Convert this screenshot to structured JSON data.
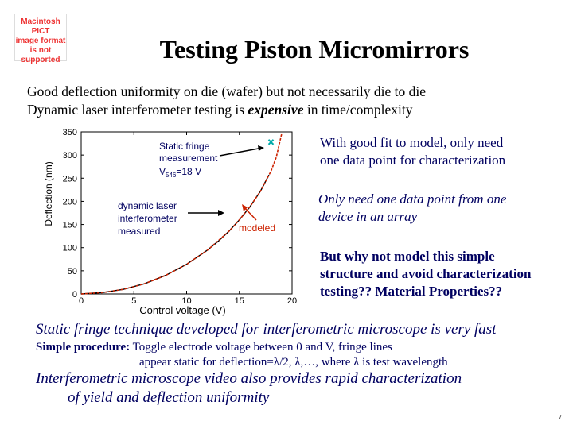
{
  "placeholder": {
    "line1": "Macintosh PICT",
    "line2": "image format",
    "line3": "is not supported"
  },
  "title": "Testing Piston Micromirrors",
  "bullets": [
    "Good deflection uniformity on die (wafer) but not necessarily die to die",
    "Dynamic laser interferometer testing is ",
    "expensive",
    " in time/complexity"
  ],
  "notes": {
    "note1_line1": "With good fit to model, only need",
    "note1_line2": "one data point for characterization",
    "note2_line1": "Only need one data point from one",
    "note2_line2": "device in an array",
    "note3_line1": "But why not model this simple",
    "note3_line2": "structure and avoid characterization",
    "note3_line3": "testing?? Material Properties??"
  },
  "lower": {
    "line1": "Static fringe technique developed for interferometric microscope is very fast",
    "line2_bold": "Simple procedure:",
    "line2_rest": " Toggle electrode voltage between 0 and V, fringe lines",
    "line3": "appear static for deflection=λ/2, λ,…, where λ is test wavelength",
    "line4": "Interferometric microscope video also provides rapid characterization",
    "line5": "of yield and deflection uniformity"
  },
  "page_number": "7",
  "colors": {
    "text_blue": "#000060",
    "model_red": "#cc2200",
    "marker_cyan": "#00aaaa",
    "arrow": "#000000"
  },
  "chart_data": {
    "type": "line",
    "xlabel": "Control voltage (V)",
    "ylabel": "Deflection (nm)",
    "xlim": [
      0,
      20
    ],
    "ylim": [
      0,
      350
    ],
    "xticks": [
      0,
      5,
      10,
      15,
      20
    ],
    "yticks": [
      0,
      50,
      100,
      150,
      200,
      250,
      300,
      350
    ],
    "grid": false,
    "series": [
      {
        "name": "measured",
        "style": "solid",
        "color": "#000000",
        "x": [
          0,
          2,
          4,
          6,
          8,
          10,
          12,
          13,
          14,
          15,
          16,
          17,
          17.8
        ],
        "y": [
          0,
          3,
          10,
          22,
          40,
          64,
          95,
          114,
          135,
          160,
          188,
          222,
          257
        ]
      },
      {
        "name": "modeled",
        "style": "dashed",
        "color": "#cc2200",
        "x": [
          0,
          2,
          4,
          6,
          8,
          10,
          12,
          14,
          15,
          16,
          17,
          18,
          18.5,
          19
        ],
        "y": [
          0,
          3,
          10,
          22,
          40,
          64,
          95,
          135,
          160,
          188,
          222,
          265,
          295,
          345
        ]
      }
    ],
    "points": [
      {
        "x": 18,
        "y": 328
      }
    ],
    "annotations": {
      "static_l1": "Static fringe",
      "static_l2": "measurement",
      "static_v": "V",
      "static_sub": "546",
      "static_eq": "=18 V",
      "dyn_l1": "dynamic laser",
      "dyn_l2": "interferometer",
      "dyn_l3": "measured",
      "modeled": "modeled"
    }
  }
}
